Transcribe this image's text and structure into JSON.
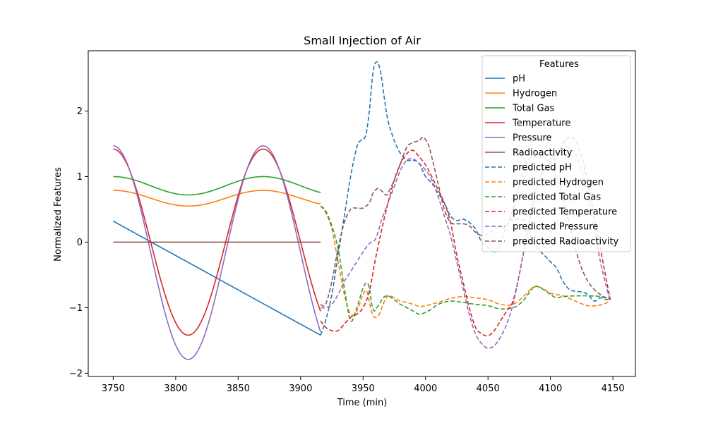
{
  "chart_data": {
    "type": "line",
    "title": "Small Injection of Air",
    "xlabel": "Time (min)",
    "ylabel": "Normalized Features",
    "xlim": [
      3730,
      4168
    ],
    "ylim": [
      -2.05,
      2.92
    ],
    "xticks": [
      3750,
      3800,
      3850,
      3900,
      3950,
      4000,
      4050,
      4100,
      4150
    ],
    "yticks": [
      -2,
      -1,
      0,
      1,
      2
    ],
    "grid": false,
    "legend": {
      "title": "Features",
      "placement": "upper right"
    },
    "series": [
      {
        "name": "pH",
        "color": "#1f77b4",
        "style": "solid",
        "function": "linear",
        "x_start": 3750,
        "x_end": 3916,
        "y_start": 0.32,
        "y_end": -1.42
      },
      {
        "name": "Hydrogen",
        "color": "#ff7f0e",
        "style": "solid",
        "function": "cosine",
        "x_start": 3750,
        "x_end": 3916,
        "center": 0.67,
        "amplitude": 0.12,
        "period": 120,
        "phase_x": 3750
      },
      {
        "name": "Total Gas",
        "color": "#2ca02c",
        "style": "solid",
        "function": "cosine",
        "x_start": 3750,
        "x_end": 3916,
        "center": 0.86,
        "amplitude": 0.14,
        "period": 120,
        "phase_x": 3750
      },
      {
        "name": "Temperature",
        "color": "#d62728",
        "style": "solid",
        "function": "cosine",
        "x_start": 3750,
        "x_end": 3916,
        "center": 0.0,
        "amplitude": 1.42,
        "period": 120,
        "phase_x": 3750
      },
      {
        "name": "Pressure",
        "color": "#9467bd",
        "style": "solid",
        "function": "cosine",
        "x_start": 3750,
        "x_end": 3916,
        "center": -0.16,
        "amplitude": 1.63,
        "period": 120,
        "phase_x": 3750
      },
      {
        "name": "Radioactivity",
        "color": "#8c564b",
        "style": "solid",
        "function": "linear",
        "x_start": 3750,
        "x_end": 3916,
        "y_start": 0.0,
        "y_end": 0.0
      },
      {
        "name": "predicted pH",
        "color": "#1f77b4",
        "style": "dashed",
        "x": [
          3916,
          3920,
          3925,
          3930,
          3935,
          3940,
          3945,
          3948,
          3952,
          3955,
          3958,
          3961,
          3964,
          3967,
          3970,
          3975,
          3980,
          3985,
          3990,
          3995,
          4000,
          4005,
          4010,
          4015,
          4020,
          4025,
          4030,
          4035,
          4040,
          4045,
          4050,
          4055,
          4058,
          4062,
          4066,
          4070,
          4075,
          4080,
          4085,
          4090,
          4095,
          4100,
          4105,
          4110,
          4115,
          4120,
          4125,
          4130,
          4135,
          4140,
          4145,
          4148
        ],
        "y": [
          -1.42,
          -1.2,
          -0.8,
          -0.2,
          0.4,
          1.0,
          1.45,
          1.55,
          1.62,
          2.0,
          2.6,
          2.75,
          2.6,
          2.2,
          1.85,
          1.55,
          1.35,
          1.25,
          1.25,
          1.2,
          1.0,
          0.9,
          0.75,
          0.6,
          0.4,
          0.33,
          0.35,
          0.3,
          0.2,
          0.0,
          -0.08,
          -0.15,
          -0.1,
          0.1,
          0.3,
          0.35,
          0.35,
          0.3,
          0.05,
          -0.1,
          -0.2,
          -0.3,
          -0.4,
          -0.6,
          -0.72,
          -0.75,
          -0.76,
          -0.8,
          -0.9,
          -0.85,
          -0.88,
          -0.85
        ]
      },
      {
        "name": "predicted Hydrogen",
        "color": "#ff7f0e",
        "style": "dashed",
        "x": [
          3916,
          3920,
          3925,
          3930,
          3935,
          3940,
          3945,
          3950,
          3953,
          3956,
          3958,
          3960,
          3963,
          3966,
          3970,
          3975,
          3980,
          3985,
          3990,
          3995,
          4000,
          4010,
          4020,
          4030,
          4040,
          4050,
          4060,
          4070,
          4080,
          4085,
          4090,
          4095,
          4100,
          4110,
          4120,
          4130,
          4140,
          4148
        ],
        "y": [
          0.55,
          0.45,
          0.2,
          -0.3,
          -0.8,
          -1.1,
          -1.05,
          -0.8,
          -0.75,
          -1.0,
          -1.12,
          -1.15,
          -1.1,
          -0.95,
          -0.82,
          -0.85,
          -0.9,
          -0.92,
          -0.95,
          -0.98,
          -0.97,
          -0.92,
          -0.86,
          -0.83,
          -0.85,
          -0.88,
          -0.95,
          -0.95,
          -0.8,
          -0.7,
          -0.68,
          -0.72,
          -0.78,
          -0.82,
          -0.9,
          -0.97,
          -0.96,
          -0.9
        ]
      },
      {
        "name": "predicted Total Gas",
        "color": "#2ca02c",
        "style": "dashed",
        "x": [
          3916,
          3920,
          3925,
          3930,
          3935,
          3940,
          3945,
          3950,
          3953,
          3955,
          3957,
          3959,
          3961,
          3963,
          3966,
          3970,
          3975,
          3980,
          3985,
          3990,
          3995,
          4000,
          4005,
          4010,
          4020,
          4030,
          4040,
          4050,
          4060,
          4070,
          4075,
          4080,
          4085,
          4088,
          4092,
          4096,
          4100,
          4105,
          4110,
          4120,
          4130,
          4140,
          4148
        ],
        "y": [
          0.55,
          0.48,
          0.25,
          -0.1,
          -0.7,
          -1.2,
          -1.0,
          -0.7,
          -0.62,
          -0.7,
          -0.95,
          -1.05,
          -1.0,
          -0.95,
          -0.85,
          -0.82,
          -0.88,
          -0.95,
          -1.0,
          -1.05,
          -1.1,
          -1.07,
          -1.02,
          -0.95,
          -0.9,
          -0.92,
          -0.95,
          -0.97,
          -1.02,
          -1.0,
          -0.95,
          -0.85,
          -0.72,
          -0.67,
          -0.7,
          -0.74,
          -0.8,
          -0.85,
          -0.83,
          -0.82,
          -0.82,
          -0.83,
          -0.87
        ]
      },
      {
        "name": "predicted Temperature",
        "color": "#d62728",
        "style": "dashed",
        "x": [
          3916,
          3920,
          3925,
          3930,
          3935,
          3940,
          3945,
          3950,
          3955,
          3960,
          3965,
          3970,
          3975,
          3980,
          3985,
          3990,
          3995,
          4000,
          4005,
          4010,
          4015,
          4020,
          4025,
          4030,
          4035,
          4040,
          4045,
          4050,
          4055,
          4060,
          4065,
          4070,
          4075,
          4080,
          4085,
          4090,
          4095,
          4100,
          4105,
          4110,
          4115,
          4120,
          4125,
          4130,
          4135,
          4140,
          4145,
          4148
        ],
        "y": [
          -1.2,
          -1.3,
          -1.35,
          -1.35,
          -1.25,
          -1.15,
          -1.1,
          -1.0,
          -0.75,
          -0.25,
          0.2,
          0.6,
          0.95,
          1.2,
          1.35,
          1.4,
          1.3,
          1.18,
          1.0,
          0.8,
          0.6,
          0.3,
          -0.2,
          -0.6,
          -1.0,
          -1.3,
          -1.4,
          -1.43,
          -1.35,
          -1.2,
          -1.05,
          -0.9,
          -0.5,
          0.0,
          0.5,
          0.9,
          1.1,
          1.2,
          1.3,
          1.5,
          1.6,
          1.55,
          1.3,
          0.9,
          0.4,
          -0.1,
          -0.6,
          -0.88
        ]
      },
      {
        "name": "predicted Pressure",
        "color": "#9467bd",
        "style": "dashed",
        "x": [
          3916,
          3920,
          3925,
          3930,
          3935,
          3940,
          3945,
          3950,
          3955,
          3960,
          3965,
          3970,
          3975,
          3980,
          3985,
          3990,
          3995,
          4000,
          4005,
          4010,
          4015,
          4020,
          4025,
          4030,
          4035,
          4040,
          4045,
          4050,
          4055,
          4060,
          4065,
          4070,
          4075,
          4080,
          4085,
          4090,
          4095,
          4100,
          4105,
          4110,
          4115,
          4120,
          4125,
          4130,
          4135,
          4140,
          4145,
          4148
        ],
        "y": [
          -1.0,
          -1.0,
          -0.95,
          -0.8,
          -0.6,
          -0.45,
          -0.3,
          -0.15,
          -0.02,
          0.05,
          0.35,
          0.6,
          0.85,
          1.1,
          1.25,
          1.27,
          1.2,
          1.1,
          0.95,
          0.7,
          0.4,
          0.1,
          -0.3,
          -0.7,
          -1.1,
          -1.4,
          -1.55,
          -1.62,
          -1.58,
          -1.45,
          -1.25,
          -0.95,
          -0.5,
          0.0,
          0.5,
          0.9,
          1.1,
          1.25,
          1.35,
          1.45,
          1.45,
          1.35,
          1.1,
          0.7,
          0.2,
          -0.3,
          -0.7,
          -0.9
        ]
      },
      {
        "name": "predicted Radioactivity",
        "color": "#8c564b",
        "style": "dashed",
        "x": [
          3916,
          3920,
          3925,
          3930,
          3935,
          3940,
          3945,
          3950,
          3955,
          3958,
          3962,
          3965,
          3968,
          3970,
          3975,
          3980,
          3985,
          3990,
          3995,
          3998,
          4002,
          4005,
          4010,
          4015,
          4020,
          4025,
          4030,
          4035,
          4040,
          4045,
          4050,
          4055,
          4060,
          4065,
          4070,
          4075,
          4080,
          4085,
          4090,
          4095,
          4100,
          4105,
          4110,
          4115,
          4120,
          4125,
          4130,
          4135,
          4140,
          4145,
          4148
        ],
        "y": [
          -0.95,
          -0.95,
          -0.6,
          -0.1,
          0.3,
          0.5,
          0.52,
          0.52,
          0.6,
          0.75,
          0.82,
          0.78,
          0.72,
          0.75,
          0.95,
          1.2,
          1.45,
          1.52,
          1.55,
          1.6,
          1.5,
          1.3,
          0.9,
          0.5,
          0.3,
          0.28,
          0.28,
          0.25,
          0.15,
          0.1,
          0.12,
          0.2,
          0.22,
          0.25,
          0.5,
          0.9,
          1.2,
          1.3,
          1.3,
          1.28,
          1.2,
          1.0,
          0.7,
          0.3,
          -0.1,
          -0.4,
          -0.6,
          -0.72,
          -0.8,
          -0.85,
          -0.85
        ]
      }
    ]
  }
}
